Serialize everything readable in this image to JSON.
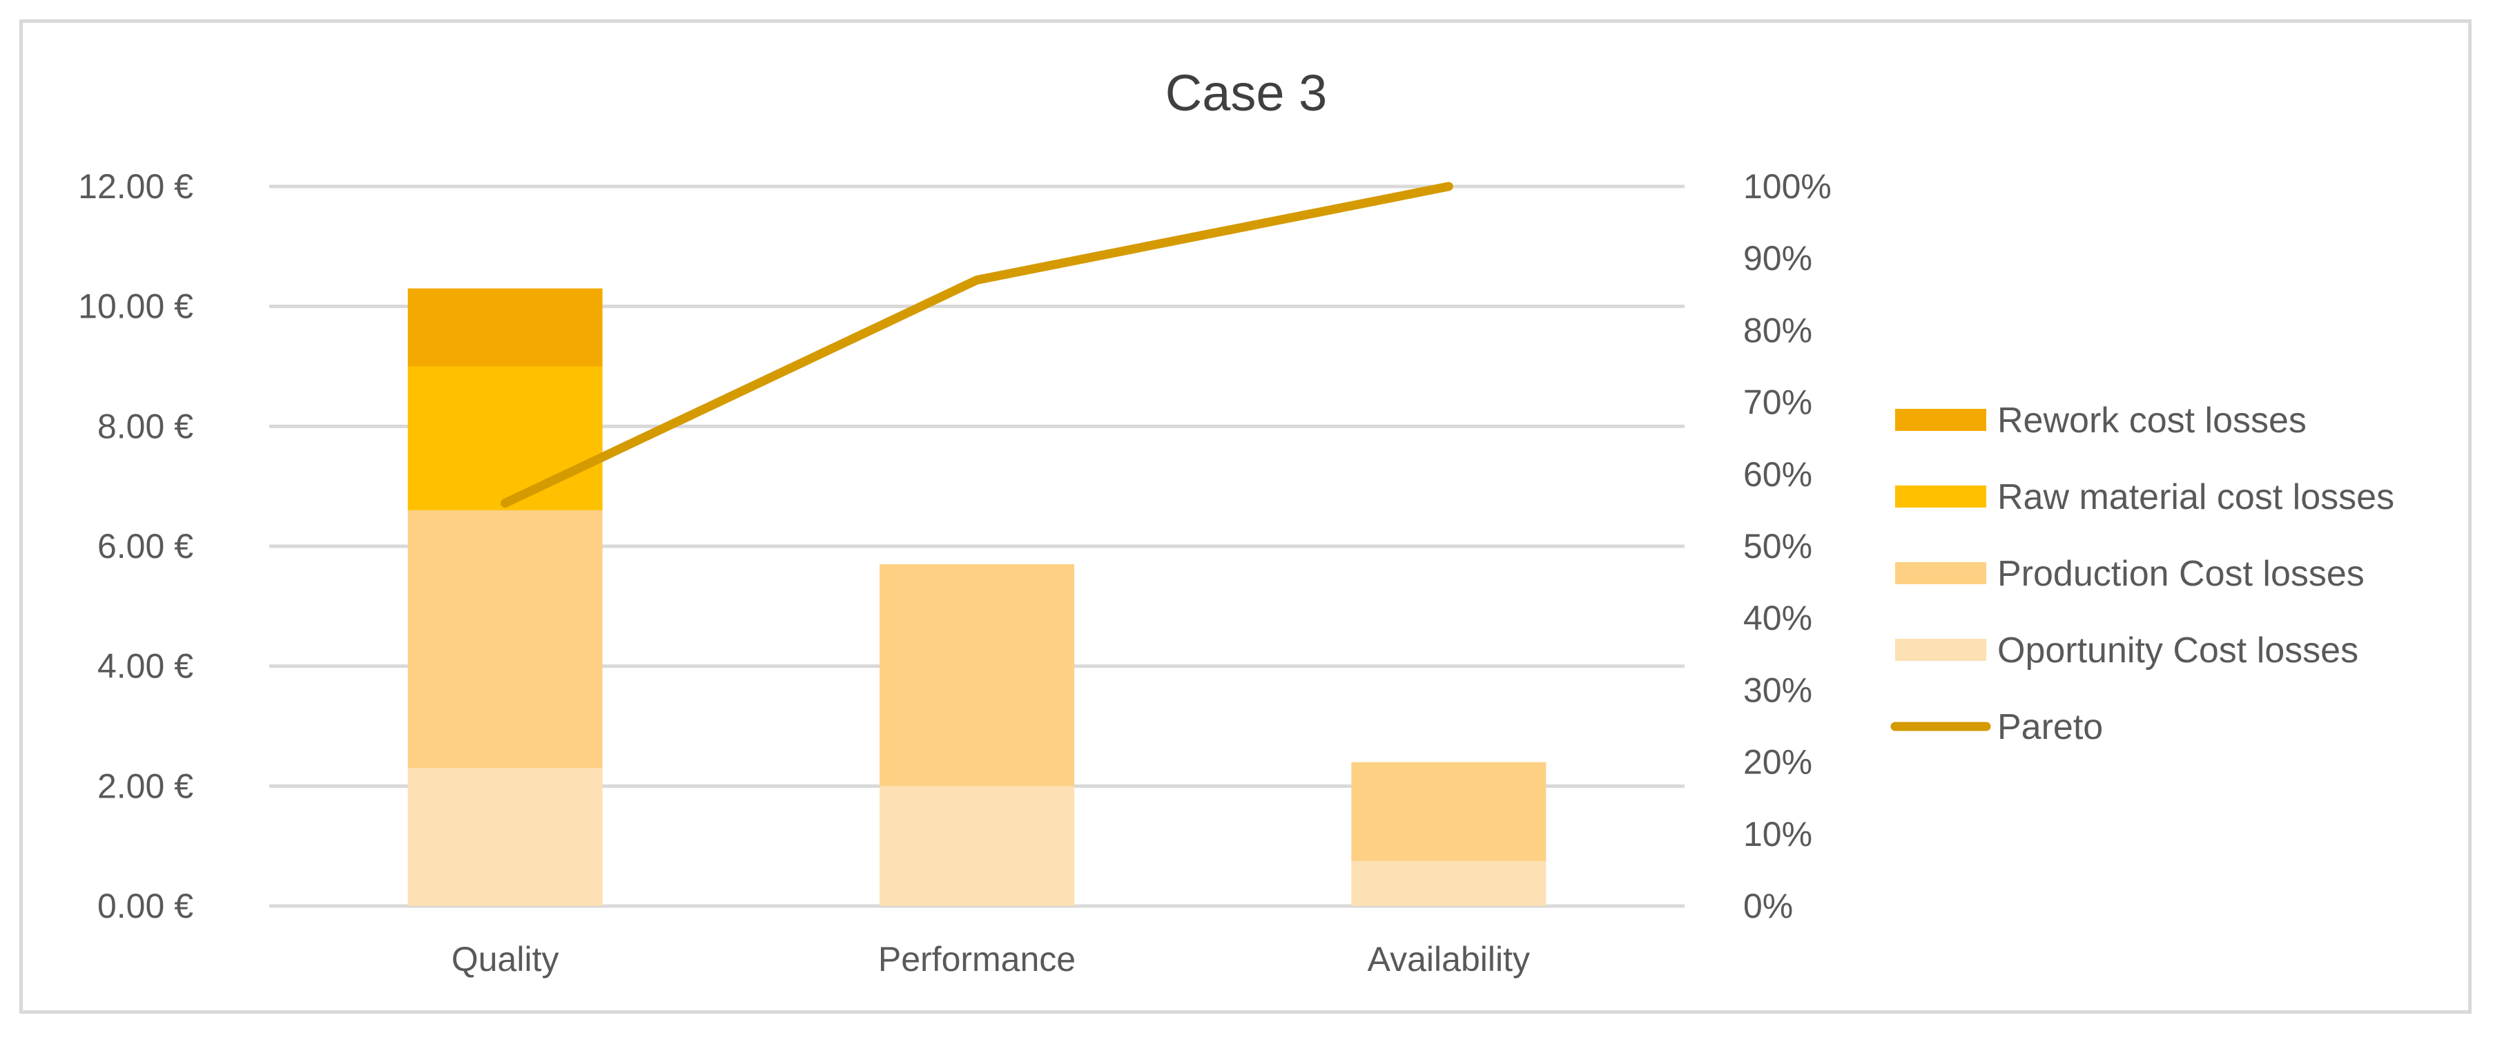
{
  "chart_data": {
    "type": "bar",
    "stacked": true,
    "title": "Case 3",
    "categories": [
      "Quality",
      "Performance",
      "Availability"
    ],
    "series": [
      {
        "name": "Oportunity Cost losses",
        "values": [
          2.3,
          2.0,
          0.75
        ],
        "color": "#fde0b3"
      },
      {
        "name": "Production Cost losses",
        "values": [
          4.3,
          3.7,
          1.65
        ],
        "color": "#fdd084"
      },
      {
        "name": "Raw material cost losses",
        "values": [
          2.4,
          0,
          0
        ],
        "color": "#ffc000"
      },
      {
        "name": "Rework cost losses",
        "values": [
          1.3,
          0,
          0
        ],
        "color": "#f4a900"
      }
    ],
    "line_series": {
      "name": "Pareto",
      "values": [
        0.56,
        0.87,
        1.0
      ],
      "color": "#d49a00",
      "axis": "right"
    },
    "legend_order": [
      "Rework cost losses",
      "Raw material cost losses",
      "Production Cost losses",
      "Oportunity Cost losses",
      "Pareto"
    ],
    "ylim": [
      0,
      12
    ],
    "yticks": [
      "0.00 €",
      "2.00 €",
      "4.00 €",
      "6.00 €",
      "8.00 €",
      "10.00 €",
      "12.00 €"
    ],
    "y2lim": [
      0,
      1
    ],
    "y2ticks": [
      "0%",
      "10%",
      "20%",
      "30%",
      "40%",
      "50%",
      "60%",
      "70%",
      "80%",
      "90%",
      "100%"
    ],
    "grid": true,
    "legend_position": "right",
    "xlabel": "",
    "ylabel": ""
  }
}
